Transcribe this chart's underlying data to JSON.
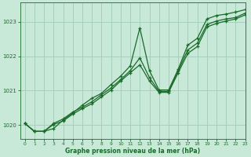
{
  "xlabel": "Graphe pression niveau de la mer (hPa)",
  "bg_color": "#c8e8d8",
  "grid_color": "#a0ccb8",
  "line_color": "#1a6b2a",
  "ylim": [
    1019.6,
    1023.55
  ],
  "xlim": [
    -0.5,
    23
  ],
  "yticks": [
    1020,
    1021,
    1022,
    1023
  ],
  "xticks": [
    0,
    1,
    2,
    3,
    4,
    5,
    6,
    7,
    8,
    9,
    10,
    11,
    12,
    13,
    14,
    15,
    16,
    17,
    18,
    19,
    20,
    21,
    22,
    23
  ],
  "series1_x": [
    0,
    1,
    2,
    3,
    4,
    5,
    6,
    7,
    8,
    9,
    10,
    11,
    12,
    13,
    14,
    15,
    16,
    17,
    18,
    19,
    20,
    21,
    22,
    23
  ],
  "series1_y": [
    1020.05,
    1019.82,
    1019.82,
    1019.9,
    1020.15,
    1020.35,
    1020.58,
    1020.78,
    1020.92,
    1021.18,
    1021.42,
    1021.72,
    1022.82,
    1021.58,
    1021.02,
    1021.02,
    1021.62,
    1022.32,
    1022.52,
    1023.08,
    1023.18,
    1023.22,
    1023.28,
    1023.35
  ],
  "series2_x": [
    0,
    1,
    2,
    3,
    4,
    5,
    6,
    7,
    8,
    9,
    10,
    11,
    12,
    13,
    14,
    15,
    16,
    17,
    18,
    19,
    20,
    21,
    22,
    23
  ],
  "series2_y": [
    1020.05,
    1019.82,
    1019.82,
    1020.05,
    1020.18,
    1020.38,
    1020.52,
    1020.68,
    1020.88,
    1021.08,
    1021.32,
    1021.58,
    1021.95,
    1021.38,
    1020.98,
    1020.98,
    1021.58,
    1022.18,
    1022.38,
    1022.92,
    1023.02,
    1023.08,
    1023.12,
    1023.25
  ],
  "series3_x": [
    0,
    1,
    2,
    3,
    4,
    5,
    6,
    7,
    8,
    9,
    10,
    11,
    12,
    13,
    14,
    15,
    16,
    17,
    18,
    19,
    20,
    21,
    22,
    23
  ],
  "series3_y": [
    1020.05,
    1019.82,
    1019.82,
    1020.02,
    1020.12,
    1020.32,
    1020.48,
    1020.62,
    1020.82,
    1021.02,
    1021.28,
    1021.52,
    1021.75,
    1021.28,
    1020.95,
    1020.95,
    1021.52,
    1022.08,
    1022.28,
    1022.85,
    1022.95,
    1023.02,
    1023.08,
    1023.2
  ]
}
